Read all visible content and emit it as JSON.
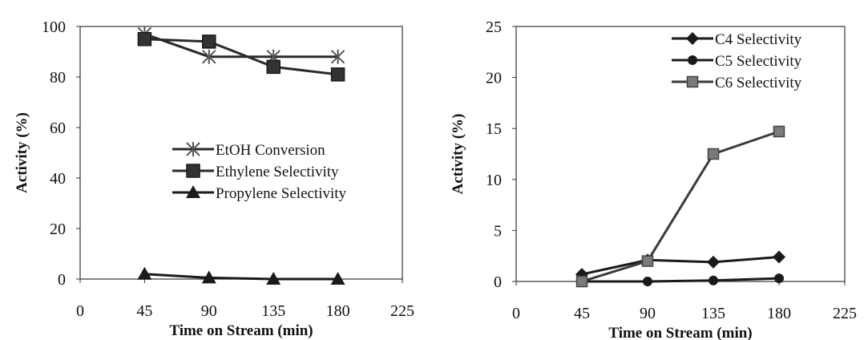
{
  "chart_data": [
    {
      "type": "line",
      "xlabel": "Time on Stream (min)",
      "ylabel": "Activity (%)",
      "xlim": [
        0,
        225
      ],
      "ylim": [
        0,
        100
      ],
      "xticks": [
        "0",
        "45",
        "90",
        "135",
        "180",
        "225"
      ],
      "yticks": [
        "0",
        "20",
        "40",
        "60",
        "80",
        "100"
      ],
      "grid": false,
      "legend_position": "center-right",
      "series": [
        {
          "name": "EtOH Conversion",
          "marker": "x-star",
          "x": [
            45,
            90,
            135,
            180
          ],
          "values": [
            97,
            88,
            88,
            88
          ]
        },
        {
          "name": "Ethylene Selectivity",
          "marker": "square",
          "x": [
            45,
            90,
            135,
            180
          ],
          "values": [
            95,
            94,
            84,
            81
          ]
        },
        {
          "name": "Propylene Selectivity",
          "marker": "triangle",
          "x": [
            45,
            90,
            135,
            180
          ],
          "values": [
            2,
            0.5,
            0,
            0
          ]
        }
      ]
    },
    {
      "type": "line",
      "xlabel": "Time on Stream (min)",
      "ylabel": "Activity (%)",
      "xlim": [
        0,
        225
      ],
      "ylim": [
        0,
        25
      ],
      "xticks": [
        "0",
        "45",
        "90",
        "135",
        "180",
        "225"
      ],
      "yticks": [
        "0",
        "5",
        "10",
        "15",
        "20",
        "25"
      ],
      "grid": false,
      "legend_position": "top-right",
      "series": [
        {
          "name": "C4 Selectivity",
          "marker": "diamond",
          "x": [
            45,
            90,
            135,
            180
          ],
          "values": [
            0.7,
            2.1,
            1.9,
            2.4
          ]
        },
        {
          "name": "C5 Selectivity",
          "marker": "circle",
          "x": [
            45,
            90,
            135,
            180
          ],
          "values": [
            0,
            0,
            0.1,
            0.3
          ]
        },
        {
          "name": "C6 Selectivity",
          "marker": "square-gray",
          "x": [
            45,
            90,
            135,
            180
          ],
          "values": [
            0,
            2,
            12.5,
            14.7
          ]
        }
      ]
    }
  ]
}
